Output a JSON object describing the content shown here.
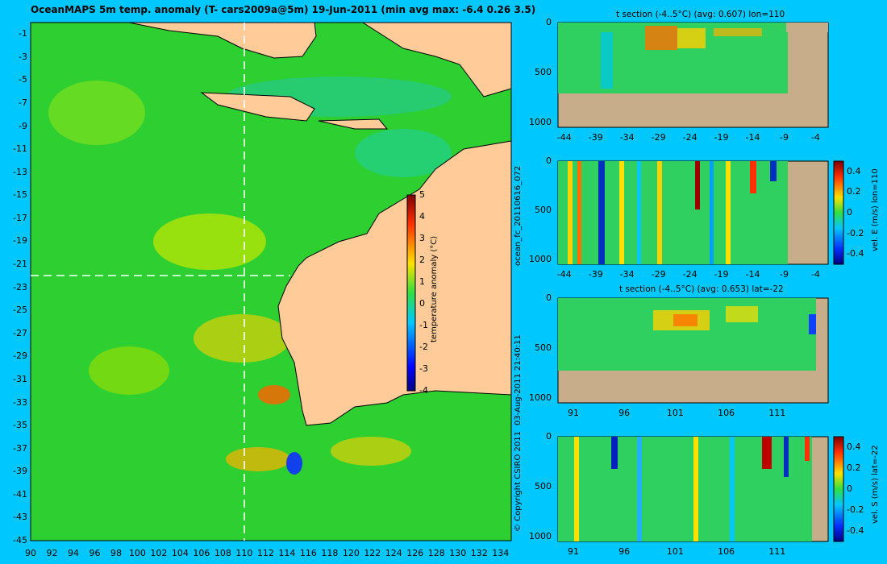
{
  "map": {
    "title": "OceanMAPS 5m temp. anomaly (T- cars2009a@5m) 19-Jun-2011 (min avg max: -6.4 0.26 3.5)",
    "xticks": [
      "90",
      "92",
      "94",
      "96",
      "98",
      "100",
      "102",
      "104",
      "106",
      "108",
      "110",
      "112",
      "114",
      "116",
      "118",
      "120",
      "122",
      "124",
      "126",
      "128",
      "130",
      "132",
      "134"
    ],
    "yticks": [
      "-1",
      "-3",
      "-5",
      "-7",
      "-9",
      "-11",
      "-13",
      "-15",
      "-17",
      "-19",
      "-21",
      "-23",
      "-25",
      "-27",
      "-29",
      "-31",
      "-33",
      "-35",
      "-37",
      "-39",
      "-41",
      "-43",
      "-45"
    ],
    "colorbar": {
      "ticks": [
        "5",
        "4",
        "3",
        "2",
        "1",
        "0",
        "-1",
        "-2",
        "-3",
        "-4"
      ],
      "label": "temperature anomaly (°C)"
    }
  },
  "sections": [
    {
      "title": "t section (-4..5°C) (avg: 0.607) lon=110",
      "yticks": [
        "0",
        "500",
        "1000"
      ],
      "xticks": [
        "-44",
        "-39",
        "-34",
        "-29",
        "-24",
        "-19",
        "-14",
        "-9",
        "-4"
      ]
    },
    {
      "title": "",
      "yticks": [
        "0",
        "500",
        "1000"
      ],
      "xticks": [
        "-44",
        "-39",
        "-34",
        "-29",
        "-24",
        "-19",
        "-14",
        "-9",
        "-4"
      ],
      "colorbar": {
        "ticks": [
          "0.4",
          "0.2",
          "0",
          "-0.2",
          "-0.4"
        ],
        "label": "vel. E (m/s) lon=110"
      }
    },
    {
      "title": "t section (-4..5°C) (avg: 0.653) lat=-22",
      "yticks": [
        "0",
        "500",
        "1000"
      ],
      "xticks": [
        "91",
        "96",
        "101",
        "106",
        "111"
      ]
    },
    {
      "title": "",
      "yticks": [
        "0",
        "500",
        "1000"
      ],
      "xticks": [
        "91",
        "96",
        "101",
        "106",
        "111"
      ],
      "colorbar": {
        "ticks": [
          "0.4",
          "0.2",
          "0",
          "-0.2",
          "-0.4"
        ],
        "label": "vel. S (m/s) lat=-22"
      }
    }
  ],
  "side_labels": {
    "run": "ocean_fc_20110616_072",
    "date": "03-Aug-2011 21:40:11",
    "copyright": "© Copyright CSIRO 2011"
  },
  "chart_data": [
    {
      "type": "heatmap",
      "title": "OceanMAPS 5m temp. anomaly (T- cars2009a@5m) 19-Jun-2011 (min avg max: -6.4 0.26 3.5)",
      "xlabel": "",
      "ylabel": "",
      "xlim": [
        90,
        135
      ],
      "ylim": [
        -45,
        0
      ],
      "crosshair": {
        "lon": 110,
        "lat": -22
      },
      "summary": {
        "min": -6.4,
        "avg": 0.26,
        "max": 3.5
      },
      "colorbar_range": [
        -4,
        5
      ],
      "colorbar_label": "temperature anomaly (°C)"
    },
    {
      "type": "heatmap",
      "title": "t section (-4..5°C) (avg: 0.607) lon=110",
      "xlim": [
        -45,
        -2
      ],
      "ylim": [
        1050,
        0
      ],
      "avg": 0.607
    },
    {
      "type": "heatmap",
      "title": "",
      "xlim": [
        -45,
        -2
      ],
      "ylim": [
        1050,
        0
      ],
      "colorbar_range": [
        -0.5,
        0.5
      ],
      "colorbar_label": "vel. E (m/s) lon=110"
    },
    {
      "type": "heatmap",
      "title": "t section (-4..5°C) (avg: 0.653) lat=-22",
      "xlim": [
        89.5,
        116
      ],
      "ylim": [
        1050,
        0
      ],
      "avg": 0.653
    },
    {
      "type": "heatmap",
      "title": "",
      "xlim": [
        89.5,
        116
      ],
      "ylim": [
        1050,
        0
      ],
      "colorbar_range": [
        -0.5,
        0.5
      ],
      "colorbar_label": "vel. S (m/s) lat=-22"
    }
  ]
}
